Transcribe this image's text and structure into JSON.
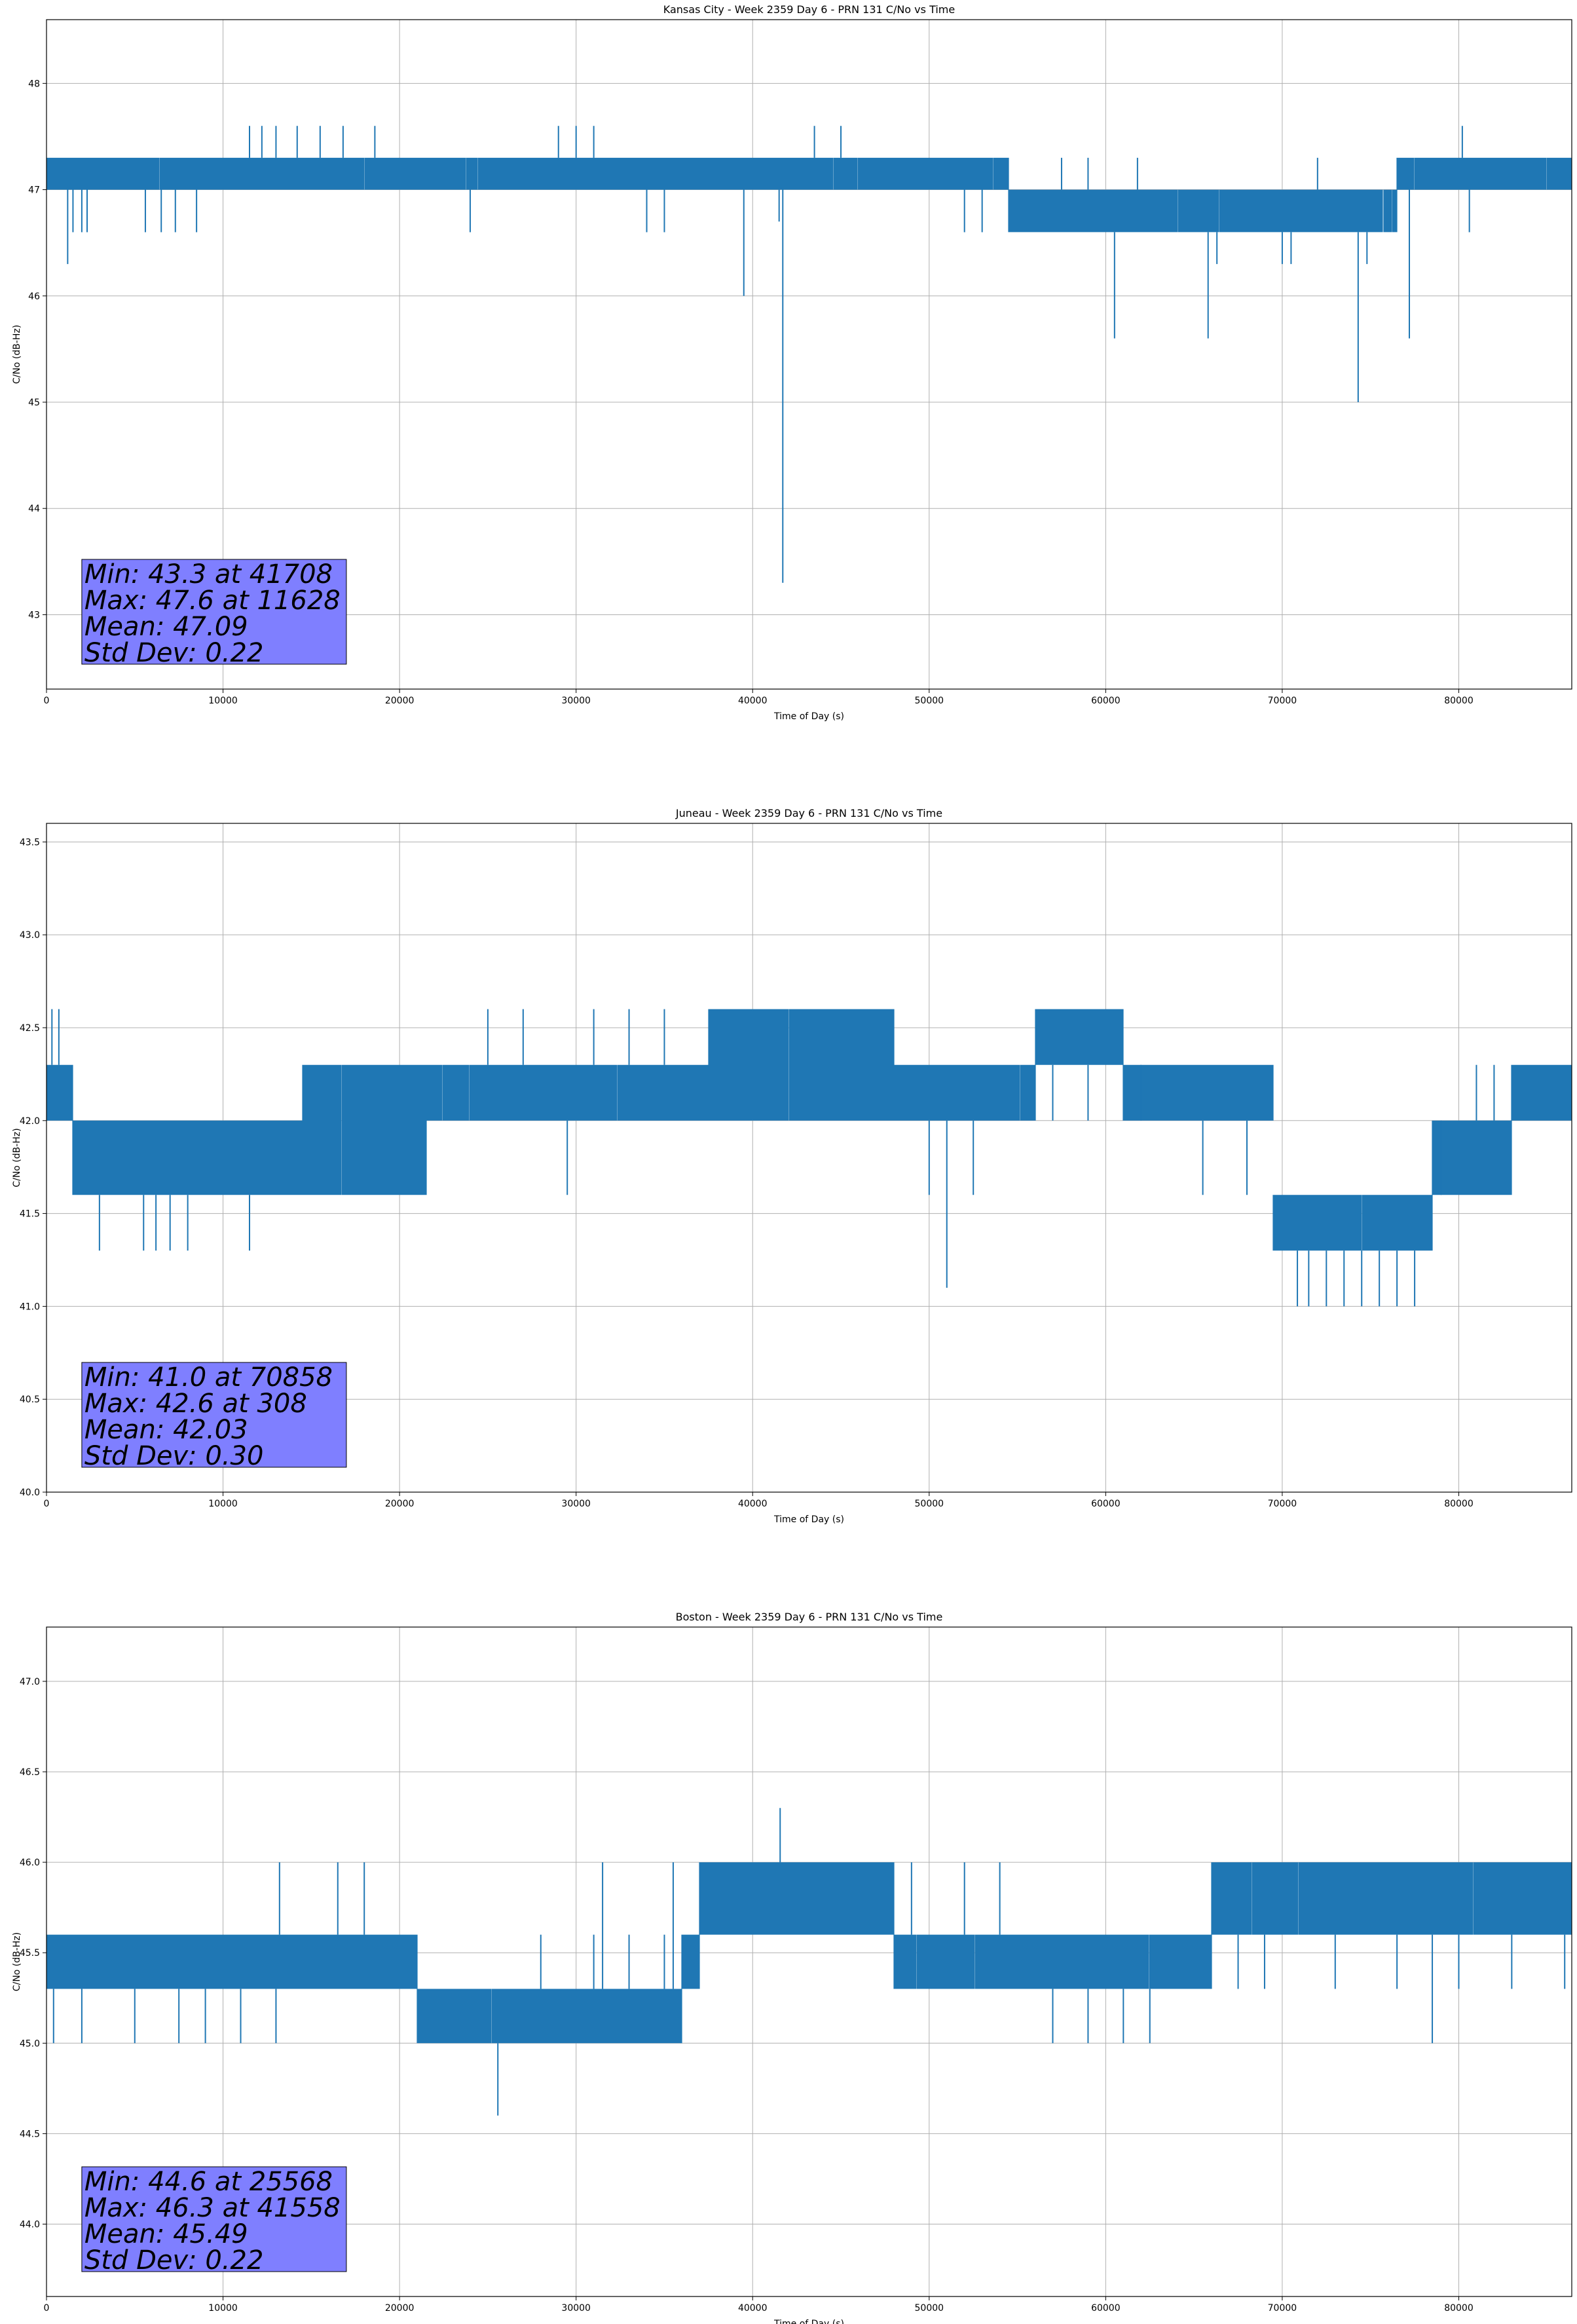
{
  "colors": {
    "series": "#1f77b4",
    "grid": "#b0b0b0",
    "stats_box": "#7f7fff"
  },
  "chart_data": [
    {
      "type": "line",
      "title": "Kansas City - Week 2359 Day 6 - PRN 131 C/No vs Time",
      "xlabel": "Time of Day (s)",
      "ylabel": "C/No (dB-Hz)",
      "xlim": [
        0,
        86400
      ],
      "ylim": [
        42.3,
        48.6
      ],
      "xticks": [
        0,
        10000,
        20000,
        30000,
        40000,
        50000,
        60000,
        70000,
        80000
      ],
      "yticks": [
        43,
        44,
        45,
        46,
        47,
        48
      ],
      "ytick_format": "int",
      "grid": true,
      "series": [
        {
          "name": "C/No",
          "bands": [
            {
              "x0": 0,
              "x1": 54500,
              "low": 47.0,
              "high": 47.3
            },
            {
              "x0": 54500,
              "x1": 76500,
              "low": 46.6,
              "high": 47.0
            },
            {
              "x0": 76500,
              "x1": 86400,
              "low": 47.0,
              "high": 47.3
            }
          ],
          "spikes": [
            [
              1200,
              46.3
            ],
            [
              1500,
              46.6
            ],
            [
              2000,
              46.6
            ],
            [
              2300,
              46.6
            ],
            [
              5600,
              46.6
            ],
            [
              6500,
              46.6
            ],
            [
              7300,
              46.6
            ],
            [
              8500,
              46.6
            ],
            [
              11500,
              47.6
            ],
            [
              12200,
              47.6
            ],
            [
              13000,
              47.6
            ],
            [
              14200,
              47.6
            ],
            [
              15500,
              47.6
            ],
            [
              16800,
              47.6
            ],
            [
              18600,
              47.6
            ],
            [
              24000,
              46.6
            ],
            [
              29000,
              47.6
            ],
            [
              30000,
              47.6
            ],
            [
              31000,
              47.6
            ],
            [
              34000,
              46.6
            ],
            [
              35000,
              46.6
            ],
            [
              39500,
              46.0
            ],
            [
              41708,
              43.3
            ],
            [
              41500,
              46.7
            ],
            [
              43500,
              47.6
            ],
            [
              45000,
              47.6
            ],
            [
              52000,
              46.6
            ],
            [
              53000,
              46.6
            ],
            [
              57500,
              47.3
            ],
            [
              59000,
              47.3
            ],
            [
              60500,
              45.6
            ],
            [
              61800,
              47.3
            ],
            [
              65800,
              45.6
            ],
            [
              66300,
              46.3
            ],
            [
              70000,
              46.3
            ],
            [
              70500,
              46.3
            ],
            [
              72000,
              47.3
            ],
            [
              74300,
              45.0
            ],
            [
              74800,
              46.3
            ],
            [
              77200,
              45.6
            ],
            [
              80200,
              47.6
            ],
            [
              80600,
              46.6
            ],
            [
              83000,
              47.3
            ]
          ]
        }
      ],
      "stats": [
        "Min: 43.3 at 41708",
        "Max: 47.6 at 11628",
        "Mean: 47.09",
        "Std Dev: 0.22"
      ]
    },
    {
      "type": "line",
      "title": "Juneau - Week 2359 Day 6 - PRN 131 C/No vs Time",
      "xlabel": "Time of Day (s)",
      "ylabel": "C/No (dB-Hz)",
      "xlim": [
        0,
        86400
      ],
      "ylim": [
        40.0,
        43.6
      ],
      "xticks": [
        0,
        10000,
        20000,
        30000,
        40000,
        50000,
        60000,
        70000,
        80000
      ],
      "yticks": [
        40.0,
        40.5,
        41.0,
        41.5,
        42.0,
        42.5,
        43.0,
        43.5
      ],
      "ytick_format": "one",
      "grid": true,
      "series": [
        {
          "name": "C/No",
          "bands": [
            {
              "x0": 0,
              "x1": 1500,
              "low": 42.0,
              "high": 42.3
            },
            {
              "x0": 1500,
              "x1": 14500,
              "low": 41.6,
              "high": 42.0
            },
            {
              "x0": 14500,
              "x1": 21500,
              "low": 41.6,
              "high": 42.3
            },
            {
              "x0": 21500,
              "x1": 37500,
              "low": 42.0,
              "high": 42.3
            },
            {
              "x0": 37500,
              "x1": 48000,
              "low": 42.0,
              "high": 42.6
            },
            {
              "x0": 48000,
              "x1": 56000,
              "low": 42.0,
              "high": 42.3
            },
            {
              "x0": 56000,
              "x1": 61000,
              "low": 42.3,
              "high": 42.6
            },
            {
              "x0": 61000,
              "x1": 69500,
              "low": 42.0,
              "high": 42.3
            },
            {
              "x0": 69500,
              "x1": 78500,
              "low": 41.3,
              "high": 41.6
            },
            {
              "x0": 78500,
              "x1": 83000,
              "low": 41.6,
              "high": 42.0
            },
            {
              "x0": 83000,
              "x1": 86400,
              "low": 42.0,
              "high": 42.3
            }
          ],
          "spikes": [
            [
              308,
              42.6
            ],
            [
              700,
              42.6
            ],
            [
              3000,
              41.3
            ],
            [
              5500,
              41.3
            ],
            [
              6200,
              41.3
            ],
            [
              7000,
              41.3
            ],
            [
              8000,
              41.3
            ],
            [
              11500,
              41.3
            ],
            [
              25000,
              42.6
            ],
            [
              27000,
              42.6
            ],
            [
              29500,
              41.6
            ],
            [
              31000,
              42.6
            ],
            [
              33000,
              42.6
            ],
            [
              35000,
              42.6
            ],
            [
              38000,
              42.6
            ],
            [
              46500,
              42.6
            ],
            [
              50000,
              41.6
            ],
            [
              51000,
              41.1
            ],
            [
              52500,
              41.6
            ],
            [
              57000,
              42.0
            ],
            [
              59000,
              42.0
            ],
            [
              62000,
              42.0
            ],
            [
              65500,
              41.6
            ],
            [
              68000,
              41.6
            ],
            [
              70858,
              41.0
            ],
            [
              71500,
              41.0
            ],
            [
              72500,
              41.0
            ],
            [
              73500,
              41.0
            ],
            [
              74500,
              41.0
            ],
            [
              75500,
              41.0
            ],
            [
              76500,
              41.0
            ],
            [
              77500,
              41.0
            ],
            [
              79000,
              41.6
            ],
            [
              81000,
              42.3
            ],
            [
              82000,
              42.3
            ],
            [
              84500,
              42.3
            ],
            [
              85500,
              42.3
            ]
          ]
        }
      ],
      "stats": [
        "Min: 41.0 at 70858",
        "Max: 42.6 at 308",
        "Mean: 42.03",
        "Std Dev: 0.30"
      ]
    },
    {
      "type": "line",
      "title": "Boston - Week 2359 Day 6 - PRN 131 C/No vs Time",
      "xlabel": "Time of Day (s)",
      "ylabel": "C/No (dB-Hz)",
      "xlim": [
        0,
        86400
      ],
      "ylim": [
        43.6,
        47.3
      ],
      "xticks": [
        0,
        10000,
        20000,
        30000,
        40000,
        50000,
        60000,
        70000,
        80000
      ],
      "yticks": [
        44.0,
        44.5,
        45.0,
        45.5,
        46.0,
        46.5,
        47.0
      ],
      "ytick_format": "one",
      "grid": true,
      "series": [
        {
          "name": "C/No",
          "bands": [
            {
              "x0": 0,
              "x1": 21000,
              "low": 45.3,
              "high": 45.6
            },
            {
              "x0": 21000,
              "x1": 36000,
              "low": 45.0,
              "high": 45.3
            },
            {
              "x0": 36000,
              "x1": 37000,
              "low": 45.3,
              "high": 45.6
            },
            {
              "x0": 37000,
              "x1": 48000,
              "low": 45.6,
              "high": 46.0
            },
            {
              "x0": 48000,
              "x1": 66000,
              "low": 45.3,
              "high": 45.6
            },
            {
              "x0": 66000,
              "x1": 86400,
              "low": 45.6,
              "high": 46.0
            }
          ],
          "spikes": [
            [
              400,
              45.0
            ],
            [
              2000,
              45.0
            ],
            [
              5000,
              45.0
            ],
            [
              7500,
              45.0
            ],
            [
              9000,
              45.0
            ],
            [
              11000,
              45.0
            ],
            [
              13000,
              45.0
            ],
            [
              13200,
              46.0
            ],
            [
              16500,
              46.0
            ],
            [
              18000,
              46.0
            ],
            [
              25568,
              44.6
            ],
            [
              28000,
              45.6
            ],
            [
              31000,
              45.6
            ],
            [
              31500,
              46.0
            ],
            [
              33000,
              45.6
            ],
            [
              35000,
              45.6
            ],
            [
              35500,
              46.0
            ],
            [
              41558,
              46.3
            ],
            [
              43000,
              46.0
            ],
            [
              49000,
              46.0
            ],
            [
              52000,
              46.0
            ],
            [
              54000,
              46.0
            ],
            [
              57000,
              45.0
            ],
            [
              59000,
              45.0
            ],
            [
              61000,
              45.0
            ],
            [
              62500,
              45.0
            ],
            [
              67500,
              45.3
            ],
            [
              69000,
              45.3
            ],
            [
              73000,
              45.3
            ],
            [
              76500,
              45.3
            ],
            [
              78500,
              45.0
            ],
            [
              80000,
              45.3
            ],
            [
              83000,
              45.3
            ],
            [
              86000,
              45.3
            ]
          ]
        }
      ],
      "stats": [
        "Min: 44.6 at 25568",
        "Max: 46.3 at 41558",
        "Mean: 45.49",
        "Std Dev: 0.22"
      ]
    }
  ]
}
